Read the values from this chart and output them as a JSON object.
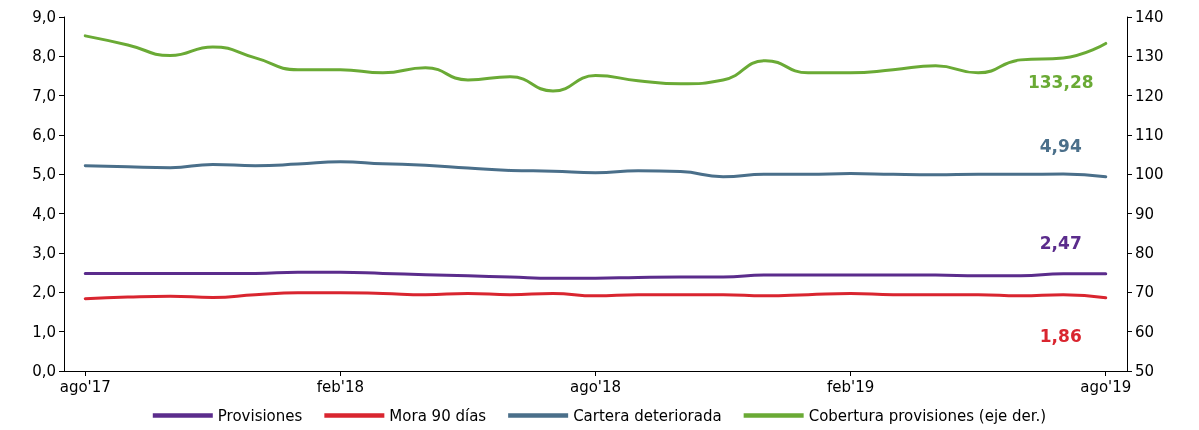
{
  "chart_data": {
    "type": "line",
    "categories": [
      "ago'17",
      null,
      null,
      null,
      null,
      null,
      "feb'18",
      null,
      null,
      null,
      null,
      null,
      "ago'18",
      null,
      null,
      null,
      null,
      null,
      "feb'19",
      null,
      null,
      null,
      null,
      null,
      "ago'19"
    ],
    "series": [
      {
        "name": "Provisiones",
        "color": "#5b2c8c",
        "values": [
          2.48,
          2.48,
          2.48,
          2.48,
          2.48,
          2.51,
          2.51,
          2.48,
          2.45,
          2.42,
          2.39,
          2.36,
          2.36,
          2.38,
          2.39,
          2.39,
          2.44,
          2.44,
          2.44,
          2.44,
          2.44,
          2.42,
          2.42,
          2.47,
          2.47
        ],
        "value_labels": [
          null,
          null,
          null,
          null,
          null,
          null,
          null,
          null,
          null,
          null,
          null,
          null,
          null,
          null,
          null,
          null,
          null,
          null,
          null,
          null,
          null,
          null,
          null,
          null,
          "2,47"
        ]
      },
      {
        "name": "Mora 90 días",
        "color": "#d9252f",
        "values": [
          1.84,
          1.88,
          1.9,
          1.87,
          1.94,
          1.99,
          1.99,
          1.97,
          1.94,
          1.97,
          1.94,
          1.97,
          1.91,
          1.94,
          1.94,
          1.94,
          1.91,
          1.94,
          1.97,
          1.94,
          1.94,
          1.94,
          1.91,
          1.94,
          1.86
        ],
        "value_labels": [
          null,
          null,
          null,
          null,
          null,
          null,
          null,
          null,
          null,
          null,
          null,
          null,
          null,
          null,
          null,
          null,
          null,
          null,
          null,
          null,
          null,
          null,
          null,
          null,
          "1,86"
        ]
      },
      {
        "name": "Cartera deteriorada",
        "color": "#4a6f8a",
        "values": [
          5.22,
          5.19,
          5.17,
          5.25,
          5.22,
          5.26,
          5.32,
          5.27,
          5.23,
          5.16,
          5.1,
          5.08,
          5.04,
          5.09,
          5.07,
          4.94,
          5.0,
          5.0,
          5.02,
          5.0,
          4.99,
          5.0,
          5.0,
          5.01,
          4.94
        ],
        "value_labels": [
          null,
          null,
          null,
          null,
          null,
          null,
          null,
          null,
          null,
          null,
          null,
          null,
          null,
          null,
          null,
          null,
          null,
          null,
          null,
          null,
          null,
          null,
          null,
          null,
          "4,94"
        ]
      },
      {
        "name": "Cobertura provisiones (eje der.)",
        "color": "#6aaa35",
        "axis": "y2",
        "values": [
          135.2,
          132.9,
          130.2,
          132.4,
          129.6,
          126.6,
          126.6,
          125.8,
          127.1,
          124.0,
          124.8,
          121.2,
          125.1,
          123.8,
          123.0,
          124.0,
          128.9,
          125.8,
          125.8,
          126.6,
          127.6,
          125.8,
          129.1,
          129.6,
          133.28
        ],
        "value_labels": [
          null,
          null,
          null,
          null,
          null,
          null,
          null,
          null,
          null,
          null,
          null,
          null,
          null,
          null,
          null,
          null,
          null,
          null,
          null,
          null,
          null,
          null,
          null,
          null,
          "133,28"
        ]
      }
    ],
    "ylim": [
      0,
      9
    ],
    "yticks": [
      {
        "value": 0,
        "label": "0,0"
      },
      {
        "value": 1,
        "label": "1,0"
      },
      {
        "value": 2,
        "label": "2,0"
      },
      {
        "value": 3,
        "label": "3,0"
      },
      {
        "value": 4,
        "label": "4,0"
      },
      {
        "value": 5,
        "label": "5,0"
      },
      {
        "value": 6,
        "label": "6,0"
      },
      {
        "value": 7,
        "label": "7,0"
      },
      {
        "value": 8,
        "label": "8,0"
      },
      {
        "value": 9,
        "label": "9,0"
      }
    ],
    "y2lim": [
      50,
      140
    ],
    "y2ticks": [
      50,
      60,
      70,
      80,
      90,
      100,
      110,
      120,
      130,
      140
    ],
    "legend": "bottom",
    "grid": false,
    "marker": "none",
    "line_style": "solid"
  }
}
